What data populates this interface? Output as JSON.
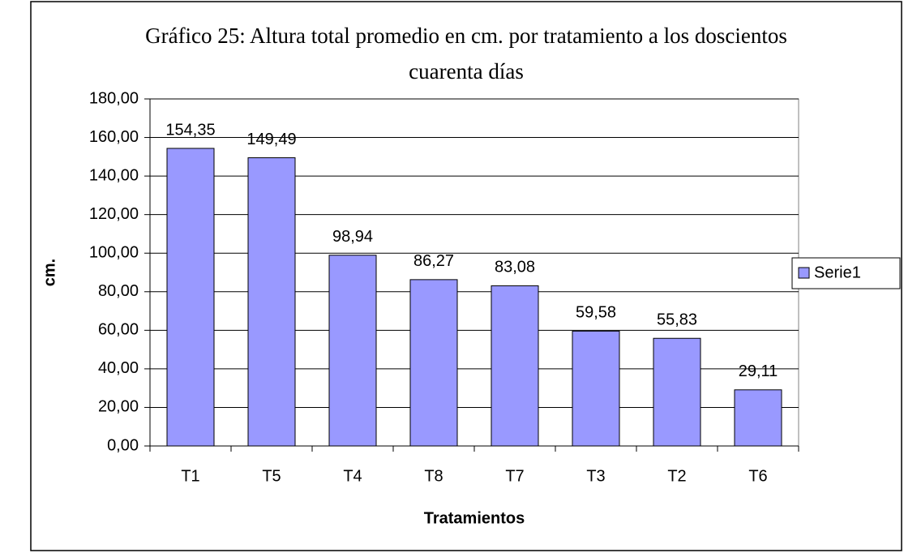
{
  "chart_data": {
    "type": "bar",
    "title": "Gráfico 25: Altura total promedio en cm. por tratamiento a los doscientos cuarenta días",
    "x_label": "Tratamientos",
    "y_label": "cm.",
    "categories": [
      "T1",
      "T5",
      "T4",
      "T8",
      "T7",
      "T3",
      "T2",
      "T6"
    ],
    "series": [
      {
        "name": "Serie1",
        "color": "#9999ff",
        "values": [
          154.35,
          149.49,
          98.94,
          86.27,
          83.08,
          59.58,
          55.83,
          29.11
        ],
        "value_labels": [
          "154,35",
          "149,49",
          "98,94",
          "86,27",
          "83,08",
          "59,58",
          "55,83",
          "29,11"
        ]
      }
    ],
    "ylim": [
      0,
      180
    ],
    "yticks": [
      {
        "value": 0,
        "label": "0,00"
      },
      {
        "value": 20,
        "label": "20,00"
      },
      {
        "value": 40,
        "label": "40,00"
      },
      {
        "value": 60,
        "label": "60,00"
      },
      {
        "value": 80,
        "label": "80,00"
      },
      {
        "value": 100,
        "label": "100,00"
      },
      {
        "value": 120,
        "label": "120,00"
      },
      {
        "value": 140,
        "label": "140,00"
      },
      {
        "value": 160,
        "label": "160,00"
      },
      {
        "value": 180,
        "label": "180,00"
      }
    ],
    "grid": true,
    "legend": "right"
  }
}
